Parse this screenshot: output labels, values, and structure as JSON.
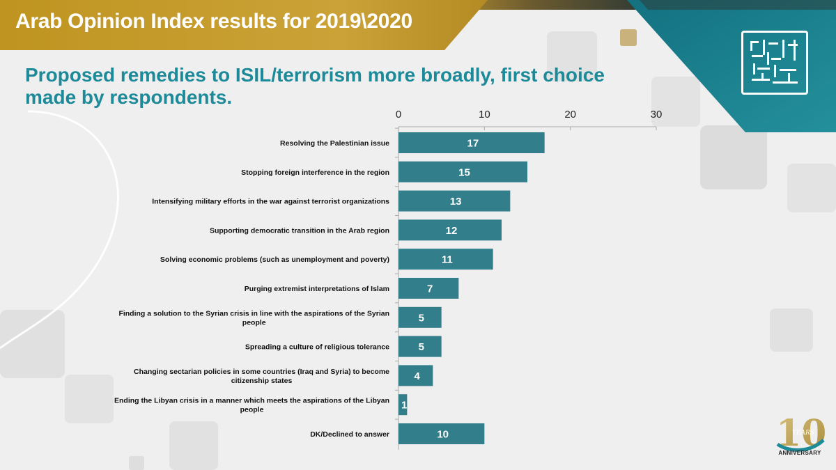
{
  "header": {
    "banner_title": "Arab Opinion Index results for 2019\\2020"
  },
  "badge": {
    "years_text": "YEARS",
    "anniversary_label": "ANNIVERSARY",
    "number": "10"
  },
  "colors": {
    "bar": "#337e8b",
    "title": "#1c8a99",
    "banner": "#c39a2c",
    "teal": "#1a7f8a"
  },
  "chart_data": {
    "type": "bar",
    "orientation": "horizontal",
    "title": "Proposed remedies to ISIL/terrorism more broadly, first choice made by respondents.",
    "xlim": [
      0,
      30
    ],
    "xticks": [
      0,
      10,
      20,
      30
    ],
    "axis_position": "top",
    "grid": false,
    "categories": [
      [
        "Resolving the Palestinian issue"
      ],
      [
        "Stopping foreign interference in the region"
      ],
      [
        "Intensifying military efforts in the war against terrorist organizations"
      ],
      [
        "Supporting democratic transition in the Arab region"
      ],
      [
        "Solving economic problems (such as unemployment and poverty)"
      ],
      [
        "Purging extremist interpretations of Islam"
      ],
      [
        "Finding a solution to the Syrian crisis in line with the aspirations of the Syrian",
        "people"
      ],
      [
        "Spreading a culture of religious tolerance"
      ],
      [
        "Changing sectarian policies in some countries (Iraq and Syria) to become",
        "citizenship states"
      ],
      [
        "Ending the Libyan crisis in a manner which meets the aspirations of the Libyan",
        "people"
      ],
      [
        "DK/Declined to answer"
      ]
    ],
    "values": [
      17,
      15,
      13,
      12,
      11,
      7,
      5,
      5,
      4,
      1,
      10
    ]
  }
}
